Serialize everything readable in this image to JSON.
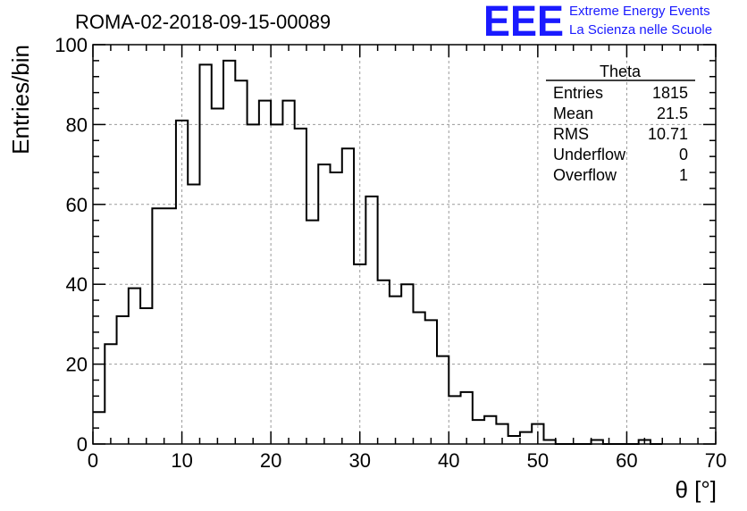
{
  "chart_data": {
    "type": "bar",
    "title": "ROMA-02-2018-09-15-00089",
    "xlabel": "θ [°]",
    "ylabel": "Entries/bin",
    "xlim": [
      0,
      70
    ],
    "ylim": [
      0,
      100
    ],
    "bin_width": 1.3333,
    "x_ticks": [
      0,
      10,
      20,
      30,
      40,
      50,
      60,
      70
    ],
    "y_ticks": [
      0,
      20,
      40,
      60,
      80,
      100
    ],
    "grid": true,
    "series": [
      {
        "values": [
          8,
          25,
          32,
          39,
          34,
          59,
          59,
          81,
          65,
          95,
          84,
          96,
          91,
          80,
          86,
          80,
          86,
          79,
          56,
          70,
          68,
          74,
          45,
          62,
          41,
          37,
          40,
          33,
          31,
          22,
          12,
          13,
          6,
          7,
          5,
          2,
          3,
          5,
          1,
          0,
          0,
          0,
          1,
          0,
          0,
          0,
          1,
          0
        ]
      }
    ],
    "stats_box": {
      "title": "Theta",
      "rows": [
        {
          "label": "Entries",
          "value": "1815"
        },
        {
          "label": "Mean",
          "value": "21.5"
        },
        {
          "label": "RMS",
          "value": "10.71"
        },
        {
          "label": "Underflow",
          "value": "0"
        },
        {
          "label": "Overflow",
          "value": "1"
        }
      ]
    }
  },
  "logo": {
    "mark": "EEE",
    "line1": "Extreme Energy Events",
    "line2": "La Scienza nelle Scuole",
    "color": "#1a1aff"
  }
}
